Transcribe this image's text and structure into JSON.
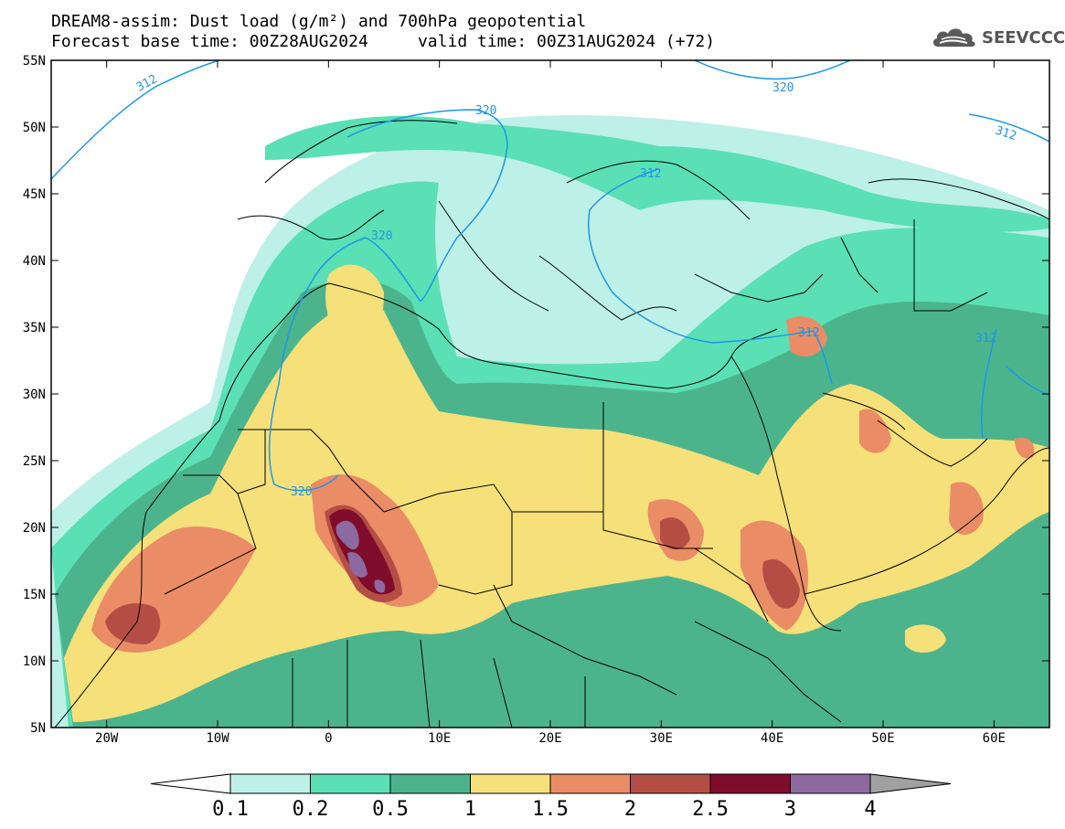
{
  "title": {
    "line1": "DREAM8-assim: Dust load (g/m²) and 700hPa geopotential",
    "line2": "Forecast base time: 00Z28AUG2024     valid time: 00Z31AUG2024 (+72)"
  },
  "logo": {
    "text": "SEEVCCC",
    "icon": "cloud-icon"
  },
  "axes": {
    "lat_labels": [
      "55N",
      "50N",
      "45N",
      "40N",
      "35N",
      "30N",
      "25N",
      "20N",
      "15N",
      "10N",
      "5N"
    ],
    "lon_labels": [
      "20W",
      "10W",
      "0",
      "10E",
      "20E",
      "30E",
      "40E",
      "50E",
      "60E"
    ]
  },
  "contours": {
    "labels": [
      "312",
      "320",
      "320",
      "312",
      "312",
      "320",
      "312",
      "312",
      "320"
    ]
  },
  "colorbar": {
    "labels": [
      "0.1",
      "0.2",
      "0.5",
      "1",
      "1.5",
      "2",
      "2.5",
      "3",
      "4"
    ],
    "colors": [
      "#bdf0e6",
      "#5ae0b4",
      "#4cb48c",
      "#f5e07a",
      "#ea8c66",
      "#b44e44",
      "#800c2c",
      "#8c6aa0"
    ],
    "low_extend_color": "#ffffff",
    "high_extend_color": "#a0a0a0"
  },
  "colors": {
    "contour": "#1e96e6",
    "ocean": "#ffffff",
    "border": "#000000"
  }
}
